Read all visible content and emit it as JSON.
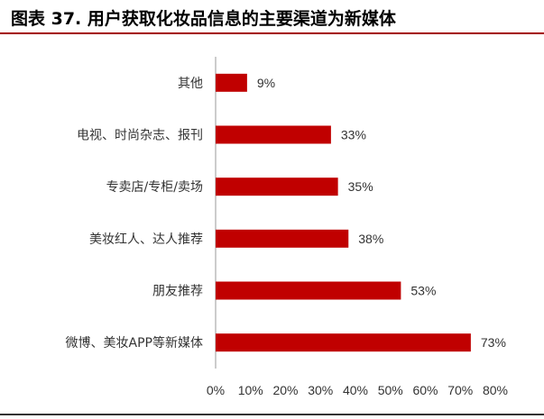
{
  "title": "图表 37. 用户获取化妆品信息的主要渠道为新媒体",
  "colors": {
    "bar": "#c00000",
    "title_rule": "#a40000",
    "axis": "#999999"
  },
  "chart_data": {
    "type": "bar",
    "orientation": "horizontal",
    "categories": [
      "其他",
      "电视、时尚杂志、报刊",
      "专卖店/专柜/卖场",
      "美妆红人、达人推荐",
      "朋友推荐",
      "微博、美妆APP等新媒体"
    ],
    "values": [
      9,
      33,
      35,
      38,
      53,
      73
    ],
    "value_labels": [
      "9%",
      "33%",
      "35%",
      "38%",
      "53%",
      "73%"
    ],
    "xlim": [
      0,
      80
    ],
    "x_ticks": [
      0,
      10,
      20,
      30,
      40,
      50,
      60,
      70,
      80
    ],
    "x_tick_labels": [
      "0%",
      "10%",
      "20%",
      "30%",
      "40%",
      "50%",
      "60%",
      "70%",
      "80%"
    ],
    "grid": false,
    "legend": "none"
  }
}
